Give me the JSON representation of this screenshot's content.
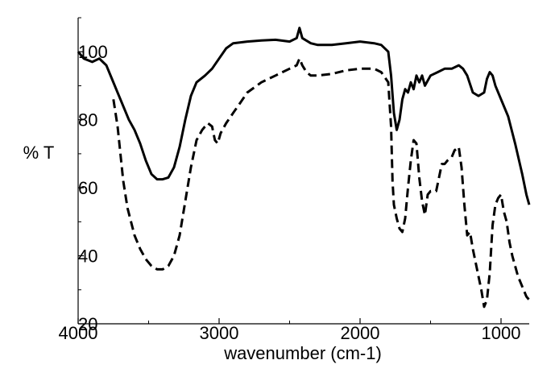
{
  "chart_data": {
    "type": "line",
    "title": "",
    "xlabel": "wavenumber (cm-1)",
    "ylabel": "% T",
    "xlim": [
      4000,
      800
    ],
    "ylim": [
      20,
      110
    ],
    "x_reversed": true,
    "grid": false,
    "x_ticks": [
      4000,
      3000,
      2000,
      1000
    ],
    "x_tick_labels": [
      "4000",
      "3000",
      "2000",
      "1000"
    ],
    "y_ticks": [
      20,
      40,
      60,
      80,
      100
    ],
    "y_tick_labels": [
      "20",
      "40",
      "60",
      "80",
      "100"
    ],
    "series": [
      {
        "style": "solid",
        "points": [
          [
            4000,
            100
          ],
          [
            3960,
            98
          ],
          [
            3900,
            97
          ],
          [
            3850,
            98
          ],
          [
            3800,
            96
          ],
          [
            3760,
            92
          ],
          [
            3720,
            88
          ],
          [
            3680,
            84
          ],
          [
            3640,
            80
          ],
          [
            3600,
            77
          ],
          [
            3560,
            73
          ],
          [
            3520,
            68
          ],
          [
            3480,
            64
          ],
          [
            3440,
            62.5
          ],
          [
            3400,
            62.5
          ],
          [
            3360,
            63
          ],
          [
            3320,
            66
          ],
          [
            3280,
            72
          ],
          [
            3240,
            80
          ],
          [
            3200,
            87
          ],
          [
            3160,
            91
          ],
          [
            3100,
            93
          ],
          [
            3050,
            95
          ],
          [
            3000,
            98
          ],
          [
            2950,
            101
          ],
          [
            2900,
            102.5
          ],
          [
            2800,
            103
          ],
          [
            2700,
            103.3
          ],
          [
            2600,
            103.5
          ],
          [
            2500,
            103
          ],
          [
            2450,
            104
          ],
          [
            2430,
            107
          ],
          [
            2410,
            104
          ],
          [
            2350,
            102.5
          ],
          [
            2300,
            102
          ],
          [
            2200,
            102
          ],
          [
            2100,
            102.5
          ],
          [
            2000,
            103
          ],
          [
            1900,
            102.5
          ],
          [
            1850,
            102
          ],
          [
            1800,
            100
          ],
          [
            1780,
            93
          ],
          [
            1760,
            82
          ],
          [
            1740,
            77
          ],
          [
            1720,
            80
          ],
          [
            1700,
            86
          ],
          [
            1680,
            89
          ],
          [
            1660,
            88
          ],
          [
            1640,
            91
          ],
          [
            1620,
            89
          ],
          [
            1600,
            93
          ],
          [
            1580,
            91
          ],
          [
            1560,
            93
          ],
          [
            1540,
            90
          ],
          [
            1500,
            93
          ],
          [
            1450,
            94
          ],
          [
            1400,
            95
          ],
          [
            1350,
            95
          ],
          [
            1300,
            96
          ],
          [
            1270,
            95
          ],
          [
            1240,
            93
          ],
          [
            1200,
            88
          ],
          [
            1160,
            87
          ],
          [
            1120,
            88
          ],
          [
            1100,
            92
          ],
          [
            1080,
            94
          ],
          [
            1060,
            93
          ],
          [
            1040,
            90
          ],
          [
            1000,
            86
          ],
          [
            950,
            81
          ],
          [
            900,
            73
          ],
          [
            850,
            64
          ],
          [
            820,
            58
          ],
          [
            800,
            55
          ]
        ]
      },
      {
        "style": "dashed",
        "points": [
          [
            3750,
            86
          ],
          [
            3720,
            78
          ],
          [
            3700,
            70
          ],
          [
            3680,
            62
          ],
          [
            3650,
            54
          ],
          [
            3600,
            46
          ],
          [
            3560,
            42
          ],
          [
            3520,
            39
          ],
          [
            3480,
            37
          ],
          [
            3440,
            36
          ],
          [
            3400,
            36
          ],
          [
            3360,
            37
          ],
          [
            3320,
            40
          ],
          [
            3280,
            46
          ],
          [
            3240,
            56
          ],
          [
            3200,
            66
          ],
          [
            3160,
            74
          ],
          [
            3120,
            77
          ],
          [
            3080,
            79
          ],
          [
            3050,
            78
          ],
          [
            3030,
            74
          ],
          [
            3010,
            73
          ],
          [
            2990,
            76
          ],
          [
            2950,
            79
          ],
          [
            2900,
            82
          ],
          [
            2850,
            85
          ],
          [
            2800,
            88
          ],
          [
            2700,
            91
          ],
          [
            2600,
            93
          ],
          [
            2500,
            95
          ],
          [
            2450,
            96
          ],
          [
            2430,
            98
          ],
          [
            2410,
            96
          ],
          [
            2380,
            94
          ],
          [
            2350,
            93
          ],
          [
            2300,
            93
          ],
          [
            2200,
            93.5
          ],
          [
            2100,
            94.5
          ],
          [
            2000,
            95
          ],
          [
            1900,
            95
          ],
          [
            1850,
            94
          ],
          [
            1800,
            91
          ],
          [
            1780,
            78
          ],
          [
            1770,
            62
          ],
          [
            1760,
            55
          ],
          [
            1740,
            51
          ],
          [
            1720,
            48
          ],
          [
            1700,
            47
          ],
          [
            1680,
            51
          ],
          [
            1660,
            60
          ],
          [
            1640,
            68
          ],
          [
            1620,
            74
          ],
          [
            1600,
            73
          ],
          [
            1580,
            63
          ],
          [
            1560,
            56
          ],
          [
            1540,
            52
          ],
          [
            1520,
            58
          ],
          [
            1500,
            59
          ],
          [
            1460,
            59
          ],
          [
            1440,
            63
          ],
          [
            1420,
            67
          ],
          [
            1400,
            67
          ],
          [
            1380,
            68
          ],
          [
            1350,
            69
          ],
          [
            1330,
            71
          ],
          [
            1300,
            72
          ],
          [
            1280,
            66
          ],
          [
            1260,
            55
          ],
          [
            1240,
            46
          ],
          [
            1220,
            47
          ],
          [
            1200,
            42
          ],
          [
            1180,
            38
          ],
          [
            1160,
            34
          ],
          [
            1140,
            30
          ],
          [
            1120,
            25
          ],
          [
            1100,
            27
          ],
          [
            1080,
            35
          ],
          [
            1060,
            49
          ],
          [
            1040,
            55
          ],
          [
            1020,
            57
          ],
          [
            1000,
            58
          ],
          [
            980,
            53
          ],
          [
            960,
            50
          ],
          [
            940,
            44
          ],
          [
            920,
            40
          ],
          [
            900,
            37
          ],
          [
            880,
            34
          ],
          [
            860,
            32
          ],
          [
            840,
            30
          ],
          [
            820,
            28
          ],
          [
            800,
            27
          ]
        ]
      }
    ]
  }
}
